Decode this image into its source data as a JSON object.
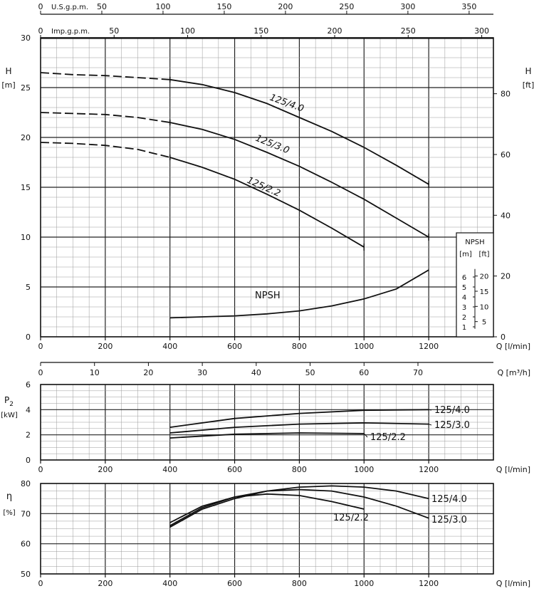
{
  "chart_data": [
    {
      "id": "head",
      "type": "line",
      "ylabel": "H",
      "ylabel_unit": "[m]",
      "y2label": "H",
      "y2label_unit": "[ft]",
      "xlabel": "Q [l/min]",
      "xlim": [
        0,
        1400
      ],
      "ylim": [
        0,
        30
      ],
      "x_ticks": [
        0,
        200,
        400,
        600,
        800,
        1000,
        1200
      ],
      "y_ticks": [
        0,
        5,
        10,
        15,
        20,
        25,
        30
      ],
      "y2_ticks": [
        0,
        20,
        40,
        60,
        80
      ],
      "grid": true,
      "top_axes": [
        {
          "label": "U.S.g.p.m.",
          "ticks": [
            0,
            50,
            100,
            150,
            200,
            250,
            300,
            350
          ],
          "factor": 3.7854
        },
        {
          "label": "Imp.g.p.m.",
          "ticks": [
            0,
            50,
            100,
            150,
            200,
            250,
            300
          ],
          "factor": 4.5461
        }
      ],
      "bottom_axis2": {
        "label": "Q [m³/h]",
        "ticks": [
          0,
          10,
          20,
          30,
          40,
          50,
          60,
          70
        ],
        "factor": 16.6667
      },
      "series": [
        {
          "name": "125/4.0",
          "dashed_x": [
            0,
            100,
            200,
            300,
            400
          ],
          "dashed_y": [
            26.5,
            26.3,
            26.2,
            26.0,
            25.8
          ],
          "x": [
            400,
            500,
            600,
            700,
            800,
            900,
            1000,
            1100,
            1200
          ],
          "y": [
            25.8,
            25.3,
            24.5,
            23.4,
            22.0,
            20.6,
            19.0,
            17.2,
            15.3
          ]
        },
        {
          "name": "125/3.0",
          "dashed_x": [
            0,
            100,
            200,
            300,
            400
          ],
          "dashed_y": [
            22.5,
            22.4,
            22.3,
            22.0,
            21.5
          ],
          "x": [
            400,
            500,
            600,
            700,
            800,
            900,
            1000,
            1100,
            1200
          ],
          "y": [
            21.5,
            20.8,
            19.8,
            18.5,
            17.1,
            15.5,
            13.8,
            11.9,
            10.0
          ]
        },
        {
          "name": "125/2.2",
          "dashed_x": [
            0,
            100,
            200,
            300,
            400
          ],
          "dashed_y": [
            19.5,
            19.4,
            19.2,
            18.8,
            18.0
          ],
          "x": [
            400,
            500,
            600,
            700,
            800,
            900,
            1000
          ],
          "y": [
            18.0,
            17.0,
            15.8,
            14.3,
            12.7,
            10.9,
            9.0
          ]
        },
        {
          "name": "NPSH",
          "x": [
            400,
            500,
            600,
            700,
            800,
            900,
            1000,
            1100,
            1200
          ],
          "y": [
            1.9,
            2.0,
            2.1,
            2.3,
            2.6,
            3.1,
            3.8,
            4.8,
            6.7
          ]
        }
      ],
      "npsh_box": {
        "title": "NPSH",
        "col_m": "[m]",
        "col_ft": "[ft]",
        "m_ticks": [
          1,
          2,
          3,
          4,
          5,
          6
        ],
        "ft_ticks": [
          5,
          10,
          15,
          20
        ]
      }
    },
    {
      "id": "power",
      "type": "line",
      "ylabel": "P",
      "ylabel_sub": "2",
      "ylabel_unit": "[kW]",
      "xlabel": "Q [l/min]",
      "xlim": [
        0,
        1400
      ],
      "ylim": [
        0,
        6
      ],
      "x_ticks": [
        0,
        200,
        400,
        600,
        800,
        1000,
        1200
      ],
      "y_ticks": [
        0,
        2,
        4,
        6
      ],
      "grid": true,
      "series": [
        {
          "name": "125/4.0",
          "x": [
            400,
            600,
            800,
            1000,
            1200
          ],
          "y": [
            2.6,
            3.3,
            3.7,
            3.95,
            4.0
          ]
        },
        {
          "name": "125/3.0",
          "x": [
            400,
            600,
            800,
            1000,
            1200
          ],
          "y": [
            2.15,
            2.6,
            2.85,
            2.95,
            2.85
          ]
        },
        {
          "name": "125/2.2",
          "x": [
            400,
            600,
            800,
            1000
          ],
          "y": [
            1.75,
            2.05,
            2.15,
            2.1
          ]
        }
      ]
    },
    {
      "id": "efficiency",
      "type": "line",
      "ylabel": "η",
      "ylabel_unit": "[%]",
      "xlabel": "Q [l/min]",
      "xlim": [
        0,
        1400
      ],
      "ylim": [
        50,
        80
      ],
      "x_ticks": [
        0,
        200,
        400,
        600,
        800,
        1000,
        1200
      ],
      "y_ticks": [
        50,
        60,
        70,
        80
      ],
      "grid": true,
      "series": [
        {
          "name": "125/4.0",
          "x": [
            400,
            500,
            600,
            700,
            800,
            900,
            1000,
            1100,
            1200
          ],
          "y": [
            65.5,
            71.5,
            75.0,
            77.5,
            78.8,
            79.2,
            78.8,
            77.5,
            75.0
          ]
        },
        {
          "name": "125/3.0",
          "x": [
            400,
            500,
            600,
            700,
            800,
            900,
            1000,
            1100,
            1200
          ],
          "y": [
            66.0,
            72.0,
            75.5,
            77.5,
            78.0,
            77.5,
            75.5,
            72.5,
            68.5
          ]
        },
        {
          "name": "125/2.2",
          "x": [
            400,
            500,
            600,
            700,
            800,
            900,
            1000
          ],
          "y": [
            67.0,
            72.5,
            75.5,
            76.5,
            76.0,
            74.0,
            71.5
          ]
        }
      ]
    }
  ]
}
